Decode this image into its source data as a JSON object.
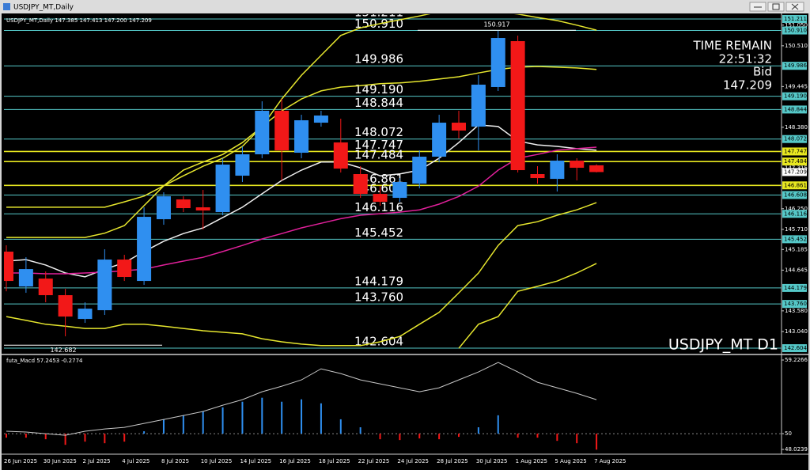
{
  "window_title": "USDJPY_MT,Daily",
  "chart_data": [
    {
      "type": "candlestick",
      "header": "USDJPY_MT,Daily  147.385 147.413 147.200 147.209",
      "symbol_label": "USDJPY_MT D1",
      "info": {
        "time_remain_label": "TIME REMAIN",
        "time_remain": "22:51:32",
        "bid_label": "Bid",
        "bid": 147.209
      },
      "categories": [
        "26 Jun 2025",
        null,
        "30 Jun 2025",
        null,
        "2 Jul 2025",
        null,
        "4 Jul 2025",
        null,
        "8 Jul 2025",
        null,
        "10 Jul 2025",
        null,
        "14 Jul 2025",
        null,
        "16 Jul 2025",
        null,
        "18 Jul 2025",
        null,
        "22 Jul 2025",
        null,
        "24 Jul 2025",
        null,
        "28 Jul 2025",
        null,
        "30 Jul 2025",
        null,
        "1 Aug 2025",
        null,
        "5 Aug 2025",
        null,
        "7 Aug 2025"
      ],
      "open": [
        145.128,
        144.217,
        144.424,
        143.99,
        143.369,
        143.597,
        144.921,
        144.362,
        145.976,
        146.493,
        146.287,
        146.162,
        147.114,
        147.673,
        148.811,
        147.714,
        148.5,
        147.983,
        147.156,
        146.638,
        146.535,
        146.907,
        147.611,
        148.5,
        148.397,
        149.432,
        150.632,
        147.156,
        147.031,
        147.507,
        147.385
      ],
      "high": [
        145.293,
        144.983,
        144.61,
        144.155,
        143.804,
        145.19,
        145.045,
        146.287,
        146.68,
        146.576,
        146.742,
        147.569,
        147.88,
        149.059,
        149.121,
        148.707,
        148.811,
        148.604,
        147.363,
        146.845,
        147.052,
        147.776,
        148.707,
        148.811,
        149.742,
        150.917,
        150.776,
        147.363,
        147.673,
        147.57,
        147.413
      ],
      "low": [
        144.093,
        144.052,
        143.804,
        142.914,
        143.266,
        143.473,
        144.362,
        144.259,
        145.831,
        146.162,
        145.707,
        146.08,
        146.949,
        147.569,
        146.99,
        147.569,
        148.397,
        147.197,
        146.535,
        146.328,
        146.431,
        146.783,
        147.466,
        148.087,
        147.776,
        149.328,
        147.197,
        146.907,
        146.7,
        146.99,
        147.2
      ],
      "close": [
        144.362,
        144.672,
        143.99,
        143.431,
        143.638,
        144.921,
        144.466,
        146.038,
        146.576,
        146.266,
        146.204,
        147.404,
        147.673,
        148.811,
        147.776,
        148.563,
        148.687,
        147.3,
        146.638,
        146.431,
        146.949,
        147.611,
        148.5,
        148.294,
        149.494,
        150.714,
        147.259,
        147.052,
        147.507,
        147.321,
        147.209
      ],
      "up_color": "#2f8ff0",
      "down_color": "#f21818",
      "ylim": [
        142.46,
        151.335
      ],
      "yticks": [
        {
          "value": 151.05,
          "label": "151.050"
        },
        {
          "value": 150.51,
          "label": "150.510"
        },
        149.445,
        {
          "value": 148.38,
          "label": "148.380"
        },
        147.315,
        {
          "value": 146.25,
          "label": "146.250"
        },
        {
          "value": 145.71,
          "label": "145.710"
        },
        145.185,
        144.645,
        {
          "value": 143.58,
          "label": "143.580"
        },
        {
          "value": 143.04,
          "label": "143.040"
        }
      ],
      "levels": [
        {
          "value": 151.211,
          "color": "#55c8c8"
        },
        {
          "value": 150.91,
          "label": "150.910",
          "color": "#55c8c8"
        },
        {
          "value": 149.986,
          "color": "#55c8c8"
        },
        {
          "value": 149.19,
          "label": "149.190",
          "color": "#55c8c8"
        },
        {
          "value": 148.844,
          "color": "#55c8c8"
        },
        {
          "value": 148.072,
          "color": "#55c8c8"
        },
        {
          "value": 147.747,
          "color": "#e8e820"
        },
        {
          "value": 147.484,
          "color": "#e8e820"
        },
        {
          "value": 146.861,
          "color": "#e8e820"
        },
        {
          "value": 146.608,
          "color": "#55c8c8"
        },
        {
          "value": 146.116,
          "color": "#55c8c8"
        },
        {
          "value": 145.452,
          "color": "#55c8c8"
        },
        {
          "value": 144.179,
          "color": "#55c8c8"
        },
        {
          "value": 143.76,
          "label": "143.760",
          "color": "#55c8c8"
        },
        {
          "value": 142.604,
          "color": "#55c8c8"
        }
      ],
      "high_mark": 150.917,
      "low_mark": 142.682,
      "series": [
        {
          "color": "#e6e62e",
          "values": [
            146.29,
            146.29,
            146.29,
            146.29,
            146.29,
            146.29,
            146.43,
            146.58,
            146.85,
            147.11,
            147.36,
            147.57,
            147.88,
            148.4,
            149.12,
            149.74,
            150.26,
            150.78,
            150.98,
            151.09,
            151.19,
            151.29,
            151.4,
            151.46,
            151.46,
            151.4,
            151.34,
            151.25,
            151.17,
            151.05,
            150.92
          ]
        },
        {
          "color": "#e6e62e",
          "values": [
            145.5,
            145.5,
            145.5,
            145.5,
            145.5,
            145.61,
            145.81,
            146.33,
            146.85,
            147.26,
            147.47,
            147.67,
            147.98,
            148.4,
            148.81,
            149.12,
            149.33,
            149.43,
            149.47,
            149.52,
            149.54,
            149.58,
            149.64,
            149.7,
            149.8,
            149.89,
            149.95,
            149.97,
            149.95,
            149.93,
            149.89
          ]
        },
        {
          "color": "#e6e62e",
          "values": [
            143.43,
            143.33,
            143.23,
            143.18,
            143.12,
            143.12,
            143.23,
            143.23,
            143.18,
            143.12,
            143.06,
            143.02,
            142.98,
            142.85,
            142.77,
            142.71,
            142.67,
            142.67,
            142.67,
            142.77,
            142.91,
            143.23,
            143.54,
            144.05,
            144.57,
            145.29,
            145.81,
            145.91,
            146.08,
            146.22,
            146.41
          ]
        },
        {
          "color": "#e6e62e",
          "values": [
            null,
            null,
            null,
            null,
            null,
            null,
            null,
            null,
            null,
            null,
            null,
            null,
            null,
            null,
            null,
            null,
            null,
            null,
            null,
            null,
            null,
            null,
            null,
            142.6,
            143.23,
            143.43,
            144.09,
            144.22,
            144.36,
            144.57,
            144.82
          ]
        },
        {
          "color": "#eeeeee",
          "values": [
            144.88,
            144.92,
            144.78,
            144.57,
            144.47,
            144.67,
            144.84,
            145.13,
            145.4,
            145.6,
            145.75,
            146.02,
            146.29,
            146.64,
            146.99,
            147.26,
            147.47,
            147.47,
            147.32,
            147.11,
            147.16,
            147.26,
            147.57,
            147.98,
            148.44,
            148.4,
            148.02,
            147.92,
            147.88,
            147.82,
            147.78
          ]
        },
        {
          "color": "#e0209a",
          "values": [
            144.57,
            144.57,
            144.55,
            144.55,
            144.57,
            144.59,
            144.63,
            144.67,
            144.78,
            144.88,
            144.98,
            145.13,
            145.29,
            145.46,
            145.6,
            145.75,
            145.87,
            145.99,
            146.08,
            146.12,
            146.16,
            146.22,
            146.37,
            146.57,
            146.84,
            147.26,
            147.57,
            147.67,
            147.78,
            147.82,
            147.86
          ]
        }
      ]
    },
    {
      "type": "macd",
      "title": "futa_Macd 57.2453 -0.2774",
      "ylim": [
        48.0239,
        59.2266
      ],
      "yticks": [
        59.2266,
        50,
        48.0239
      ],
      "values": [
        49.5,
        49.5,
        49.3,
        48.6,
        49.0,
        48.8,
        49.0,
        50.3,
        51.8,
        52.3,
        52.8,
        53.3,
        54.0,
        54.5,
        54.0,
        54.3,
        53.8,
        51.8,
        50.8,
        49.3,
        49.2,
        49.4,
        49.3,
        49.6,
        50.8,
        52.3,
        49.5,
        49.5,
        49.1,
        48.8,
        48.0
      ],
      "up_color": "#2f8ff0",
      "down_color": "#f21818",
      "series": [
        {
          "color": "#c8c8c8",
          "values": [
            50.3,
            50.2,
            50.0,
            49.8,
            50.3,
            50.59,
            50.79,
            51.29,
            51.78,
            52.28,
            52.78,
            53.57,
            54.26,
            55.25,
            55.95,
            56.74,
            58.13,
            57.53,
            56.74,
            56.24,
            55.75,
            55.25,
            55.75,
            56.74,
            57.73,
            58.92,
            57.73,
            56.44,
            55.75,
            55.05,
            54.26
          ]
        }
      ]
    }
  ]
}
